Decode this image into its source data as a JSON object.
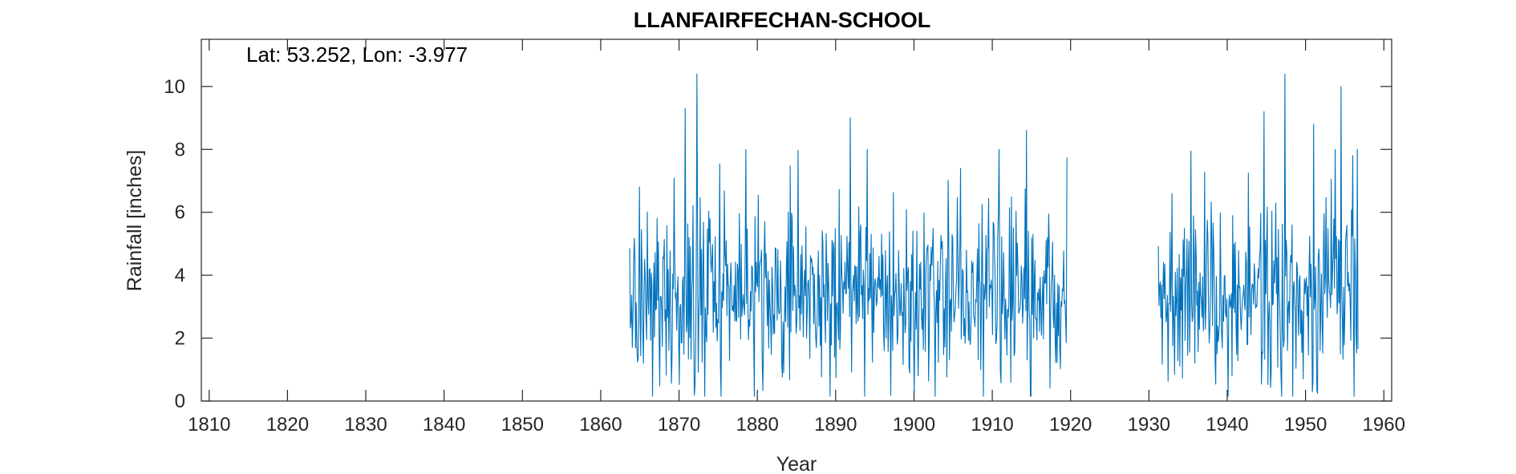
{
  "chart_data": {
    "type": "line",
    "title": "LLANFAIRFECHAN-SCHOOL",
    "annotation": "Lat: 53.252, Lon: -3.977",
    "xlabel": "Year",
    "ylabel": "Rainfall [inches]",
    "xlim": [
      1809,
      1961
    ],
    "ylim": [
      0,
      11.5
    ],
    "xticks": [
      1810,
      1820,
      1830,
      1840,
      1850,
      1860,
      1870,
      1880,
      1890,
      1900,
      1910,
      1920,
      1930,
      1940,
      1950,
      1960
    ],
    "yticks": [
      0,
      2,
      4,
      6,
      8,
      10
    ],
    "line_color": "#0072BD",
    "grid": false,
    "segments": [
      {
        "start": 1863.7,
        "end": 1919.5,
        "mean": 3.3
      },
      {
        "start": 1931.2,
        "end": 1956.7,
        "mean": 3.2
      }
    ],
    "peaks": [
      {
        "x": 1870.8,
        "y": 9.3
      },
      {
        "x": 1872.3,
        "y": 10.4
      },
      {
        "x": 1891.9,
        "y": 9.0
      },
      {
        "x": 1914.4,
        "y": 8.6
      },
      {
        "x": 1944.7,
        "y": 9.2
      },
      {
        "x": 1947.4,
        "y": 10.4
      },
      {
        "x": 1951.0,
        "y": 8.8
      },
      {
        "x": 1954.5,
        "y": 10.0
      },
      {
        "x": 1956.0,
        "y": 7.8
      }
    ]
  }
}
